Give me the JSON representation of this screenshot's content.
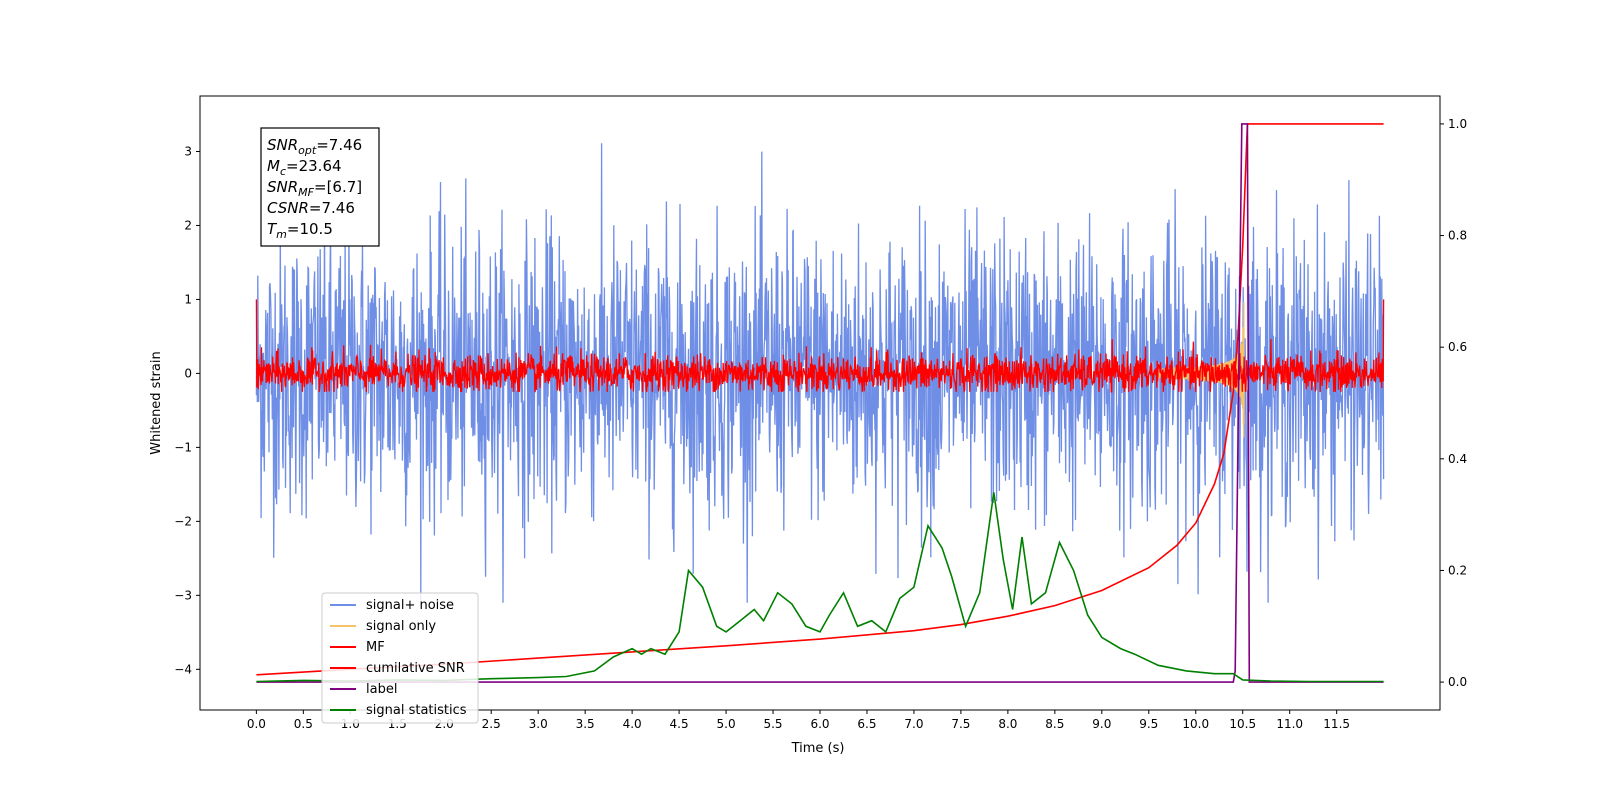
{
  "chart_data": {
    "type": "line",
    "xlabel": "Time (s)",
    "ylabel": "Whitened strain",
    "xlim": [
      -0.6,
      12.6
    ],
    "ylim": [
      -4.55,
      3.75
    ],
    "ylim_right": [
      -0.05,
      1.05
    ],
    "x_ticks": [
      "0.0",
      "0.5",
      "1.0",
      "1.5",
      "2.0",
      "2.5",
      "3.0",
      "3.5",
      "4.0",
      "4.5",
      "5.0",
      "5.5",
      "6.0",
      "6.5",
      "7.0",
      "7.5",
      "8.0",
      "8.5",
      "9.0",
      "9.5",
      "10.0",
      "10.5",
      "11.0",
      "11.5"
    ],
    "y_ticks_left": [
      "3",
      "2",
      "1",
      "0",
      "−1",
      "−2",
      "−3",
      "−4"
    ],
    "y_ticks_right": [
      "1.0",
      "0.8",
      "0.6",
      "0.4",
      "0.2",
      "0.0"
    ],
    "annotation": {
      "lines": [
        {
          "sym": "SNR",
          "sub": "opt",
          "val": "=7.46"
        },
        {
          "sym": "M",
          "sub": "c",
          "val": "=23.64"
        },
        {
          "sym": "SNR",
          "sub": "MF",
          "val": "=[6.7]"
        },
        {
          "sym": "CSNR",
          "sub": "",
          "val": "=7.46"
        },
        {
          "sym": "T",
          "sub": "m",
          "val": "=10.5"
        }
      ]
    },
    "legend": {
      "position": "lower-left"
    },
    "series": [
      {
        "name": "signal+ noise",
        "color": "#6f8ee6",
        "axis": "left",
        "kind": "noise",
        "amplitude_range": [
          -3.1,
          3.4
        ],
        "x_range": [
          0.0,
          12.0
        ]
      },
      {
        "name": "signal only",
        "color": "#f5c46a",
        "axis": "left",
        "kind": "chirp",
        "merger_time": 10.5,
        "peak_amplitude": 0.6
      },
      {
        "name": "MF",
        "color": "#ff0000",
        "axis": "left",
        "kind": "noise",
        "amplitude_range": [
          -0.25,
          0.5
        ],
        "x_range": [
          0.0,
          12.0
        ]
      },
      {
        "name": "cumilative SNR",
        "color": "#ff0000",
        "axis": "right",
        "x": [
          0.0,
          1.0,
          2.0,
          3.0,
          4.0,
          5.0,
          6.0,
          7.0,
          7.5,
          8.0,
          8.5,
          9.0,
          9.5,
          9.8,
          10.0,
          10.2,
          10.3,
          10.4,
          10.45,
          10.5,
          10.55,
          11.0,
          11.5,
          12.0
        ],
        "y": [
          0.013,
          0.023,
          0.032,
          0.043,
          0.054,
          0.065,
          0.077,
          0.092,
          0.103,
          0.118,
          0.137,
          0.164,
          0.205,
          0.245,
          0.285,
          0.355,
          0.41,
          0.52,
          0.62,
          0.78,
          1.0,
          1.0,
          1.0,
          1.0
        ]
      },
      {
        "name": "label",
        "color": "#800080",
        "axis": "right",
        "x": [
          0.0,
          10.4,
          10.42,
          10.49,
          10.55,
          10.57,
          12.0
        ],
        "y": [
          0.0,
          0.0,
          0.02,
          1.0,
          1.0,
          0.0,
          0.0
        ]
      },
      {
        "name": "signal statistics",
        "color": "#008000",
        "axis": "right",
        "x": [
          0.0,
          0.5,
          1.0,
          1.5,
          2.0,
          2.5,
          3.0,
          3.3,
          3.6,
          3.8,
          4.0,
          4.1,
          4.2,
          4.35,
          4.5,
          4.6,
          4.75,
          4.9,
          5.0,
          5.15,
          5.3,
          5.4,
          5.55,
          5.7,
          5.85,
          6.0,
          6.1,
          6.25,
          6.4,
          6.55,
          6.7,
          6.85,
          7.0,
          7.15,
          7.3,
          7.4,
          7.55,
          7.7,
          7.85,
          7.95,
          8.05,
          8.15,
          8.25,
          8.4,
          8.55,
          8.7,
          8.85,
          9.0,
          9.2,
          9.35,
          9.6,
          9.9,
          10.2,
          10.4,
          10.5,
          10.8,
          11.2,
          12.0
        ],
        "y": [
          0.001,
          0.003,
          0.002,
          0.004,
          0.003,
          0.006,
          0.008,
          0.01,
          0.02,
          0.045,
          0.06,
          0.05,
          0.06,
          0.05,
          0.09,
          0.2,
          0.17,
          0.1,
          0.09,
          0.11,
          0.13,
          0.11,
          0.16,
          0.14,
          0.1,
          0.09,
          0.12,
          0.16,
          0.1,
          0.11,
          0.09,
          0.15,
          0.17,
          0.28,
          0.24,
          0.19,
          0.1,
          0.16,
          0.34,
          0.22,
          0.13,
          0.26,
          0.14,
          0.16,
          0.25,
          0.2,
          0.12,
          0.08,
          0.06,
          0.05,
          0.03,
          0.02,
          0.015,
          0.015,
          0.004,
          0.002,
          0.001,
          0.001
        ]
      }
    ]
  }
}
